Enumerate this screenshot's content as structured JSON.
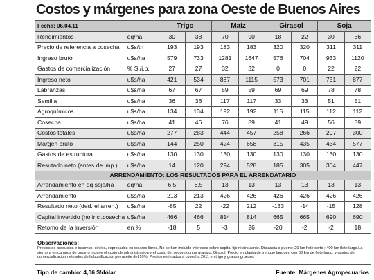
{
  "title": "Costos y márgenes para zona Oeste de Buenos Aires",
  "fecha": "Fecha: 06.04.11",
  "crops": [
    "Trigo",
    "Maíz",
    "Girasol",
    "Soja"
  ],
  "rows": [
    {
      "label": "Rendimientos",
      "unit": "qq/ha",
      "values": [
        "30",
        "38",
        "70",
        "90",
        "18",
        "22",
        "30",
        "36"
      ]
    },
    {
      "label": "Precio de referencia a cosecha",
      "unit": "u$s/tn",
      "values": [
        "193",
        "193",
        "183",
        "183",
        "320",
        "320",
        "311",
        "311"
      ]
    },
    {
      "label": "Ingreso bruto",
      "unit": "u$s/ha",
      "values": [
        "579",
        "733",
        "1281",
        "1647",
        "576",
        "704",
        "933",
        "1120"
      ]
    },
    {
      "label": "Gastos de comercialización",
      "unit": "% S./i.b.",
      "values": [
        "27",
        "27",
        "32",
        "32",
        "0",
        "0",
        "22",
        "22"
      ]
    },
    {
      "label": "Ingreso neto",
      "unit": "u$s/ha",
      "values": [
        "421",
        "534",
        "867",
        "1115",
        "573",
        "701",
        "731",
        "877"
      ]
    },
    {
      "label": "Labranzas",
      "unit": "u$s/ha",
      "values": [
        "67",
        "67",
        "59",
        "59",
        "69",
        "69",
        "78",
        "78"
      ]
    },
    {
      "label": "Semilla",
      "unit": "u$s/ha",
      "values": [
        "36",
        "36",
        "117",
        "117",
        "33",
        "33",
        "51",
        "51"
      ]
    },
    {
      "label": "Agroquímicos",
      "unit": "u$s/ha",
      "values": [
        "134",
        "134",
        "192",
        "192",
        "115",
        "115",
        "112",
        "112"
      ]
    },
    {
      "label": "Cosecha",
      "unit": "u$s/ha",
      "values": [
        "41",
        "46",
        "76",
        "89",
        "41",
        "49",
        "56",
        "59"
      ]
    },
    {
      "label": "Costos totales",
      "unit": "u$s/ha",
      "values": [
        "277",
        "283",
        "444",
        "457",
        "258",
        "266",
        "297",
        "300"
      ]
    },
    {
      "label": "Margen bruto",
      "unit": "u$s/ha",
      "values": [
        "144",
        "250",
        "424",
        "658",
        "315",
        "435",
        "434",
        "577"
      ]
    },
    {
      "label": "Gastos de estructura",
      "unit": "u$s/ha",
      "values": [
        "130",
        "130",
        "130",
        "130",
        "130",
        "130",
        "130",
        "130"
      ]
    },
    {
      "label": "Resutado neto (antes de imp.)",
      "unit": "u$s/ha",
      "values": [
        "14",
        "120",
        "294",
        "528",
        "185",
        "305",
        "304",
        "447"
      ]
    }
  ],
  "band": "ARRENDAMIENTO: LOS RESULTADOS PARA EL ARRENDATARIO",
  "rows2": [
    {
      "label": "Arrendamiento en qq soja/ha",
      "unit": "qq/ha",
      "values": [
        "6,5",
        "6,5",
        "13",
        "13",
        "13",
        "13",
        "13",
        "13"
      ]
    },
    {
      "label": "Arrendamiento",
      "unit": "u$s/ha",
      "values": [
        "213",
        "213",
        "426",
        "426",
        "426",
        "426",
        "426",
        "426"
      ]
    },
    {
      "label": "Resultado neto (ded. el arren.)",
      "unit": "u$s/ha",
      "values": [
        "-85",
        "22",
        "-22",
        "212",
        "-133",
        "-14",
        "-15",
        "128"
      ]
    },
    {
      "label": "Capital invertido (no incl.cosecha)",
      "unit": "u$s/ha",
      "values": [
        "466",
        "466",
        "814",
        "814",
        "665",
        "665",
        "690",
        "690"
      ]
    },
    {
      "label": "Retorno de la inversión",
      "unit": "en %",
      "values": [
        "-18",
        "5",
        "-3",
        "26",
        "-20",
        "-2",
        "-2",
        "18"
      ]
    }
  ],
  "observaciones": {
    "title": "Observaciones:",
    "text": "Precios de productos e insumos, sin iva, expresados en dolares libres. No se han incluido intereses sobre capital fijo ni circulante. Distancia a puerto: 20 km  flete corto ; 400 km flete largo.La siembra en campos de trecero incluye el costo de administracion y el costo del seguro contra granizo. Girasol: Precio en planta de trenque lauquen con 80 km de flete largo, y gastos  de comercializacion neteados de la bonificacion por aceite del 10%. Precios estimados a cosecha 2011 en trigo y granos gruesos"
  },
  "footer": {
    "left": "Tipo de cambio: 4,06  $/dólar",
    "right": "Fuente: Márgenes Agropecuarios"
  }
}
